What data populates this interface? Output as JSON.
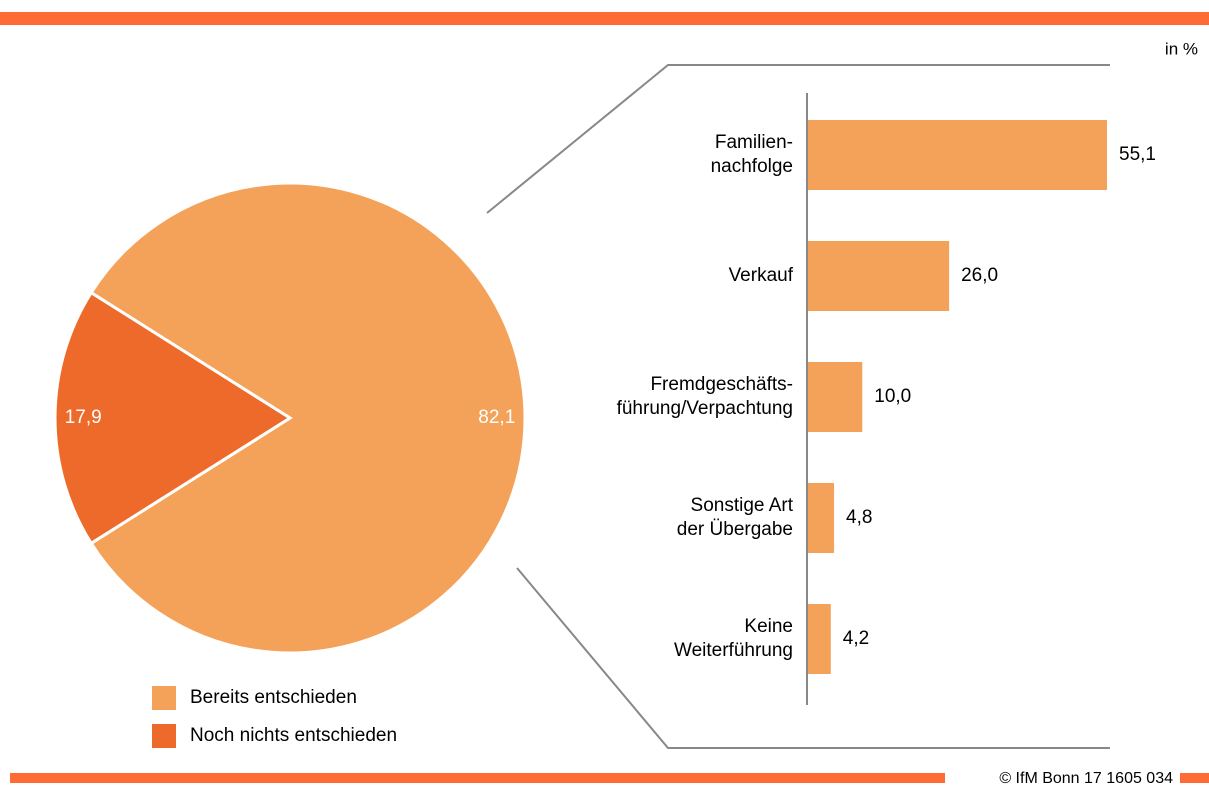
{
  "chart_data": [
    {
      "type": "pie",
      "categories": [
        "Bereits entschieden",
        "Noch nichts entschieden"
      ],
      "values": [
        82.1,
        17.9
      ],
      "value_labels": [
        "82,1",
        "17,9"
      ],
      "colors": [
        "#f4a259",
        "#ee6a2a"
      ]
    },
    {
      "type": "bar",
      "unit_label": "in %",
      "categories": [
        "Familien-\nnachfolge",
        "Verkauf",
        "Fremdgeschäfts-\nführung/Verpachtung",
        "Sonstige Art\nder Übergabe",
        "Keine\nWeiterführung"
      ],
      "values": [
        55.1,
        26.0,
        10.0,
        4.8,
        4.2
      ],
      "value_labels": [
        "55,1",
        "26,0",
        "10,0",
        "4,8",
        "4,2"
      ],
      "color": "#f4a259"
    }
  ],
  "footer": "© IfM Bonn 17 1605 034"
}
